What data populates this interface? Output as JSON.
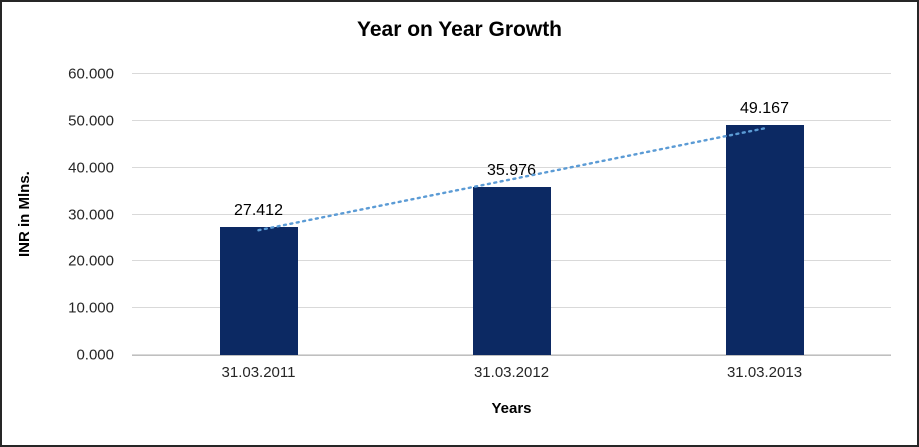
{
  "chart_data": {
    "type": "bar",
    "title": "Year on Year Growth",
    "xlabel": "Years",
    "ylabel": "INR in Mlns.",
    "categories": [
      "31.03.2011",
      "31.03.2012",
      "31.03.2013"
    ],
    "values": [
      27.412,
      35.976,
      49.167
    ],
    "value_labels": [
      "27.412",
      "35.976",
      "49.167"
    ],
    "ylim": [
      0,
      60
    ],
    "ytick_step": 10,
    "ytick_labels": [
      "0.000",
      "10.000",
      "20.000",
      "30.000",
      "40.000",
      "50.000",
      "60.000"
    ],
    "grid": true,
    "legend": "none",
    "bar_color": "#0c2963",
    "trendline": {
      "style": "dotted",
      "color": "#5b9bd5"
    },
    "gridline_color": "#d9d9d9",
    "axis_line_color": "#bfbfbf"
  }
}
